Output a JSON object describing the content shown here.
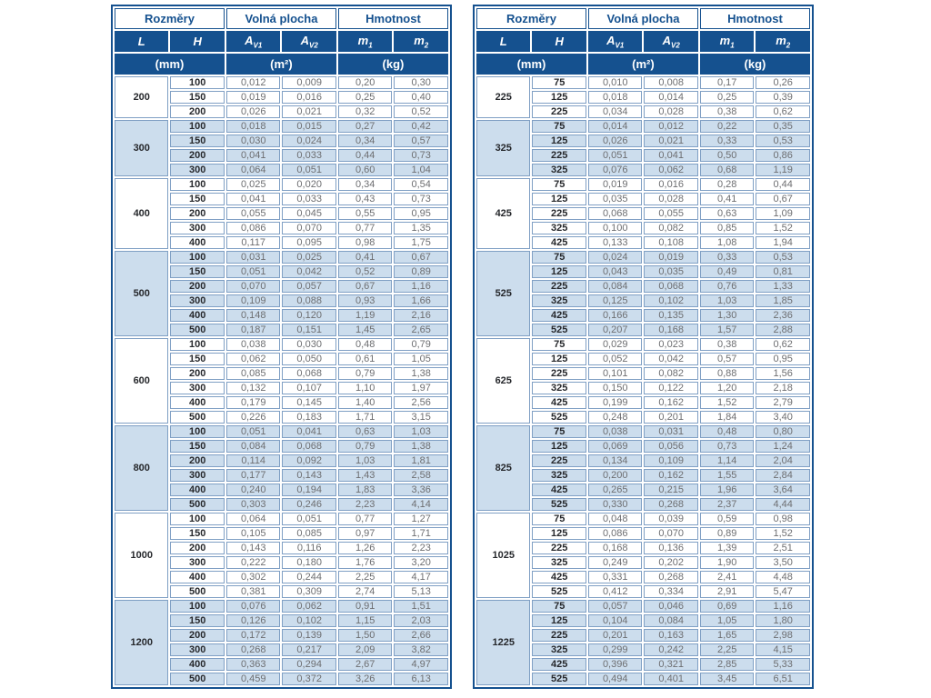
{
  "colors": {
    "header_navy": "#15518f",
    "shaded_row_blue": "#ccdded",
    "value_text_gray": "#6d6e71",
    "cell_border_blue": "#7f9fc4"
  },
  "labels": {
    "rozmery": "Rozměry",
    "volna_plocha": "Volná plocha",
    "hmotnost": "Hmotnost",
    "l": "L",
    "h": "H",
    "a_sym": "A",
    "a_sub1": "V1",
    "a_sub2": "V2",
    "m_sym": "m",
    "m_sub1": "1",
    "m_sub2": "2",
    "unit_mm": "(mm)",
    "unit_m2": "(m²)",
    "unit_kg": "(kg)"
  },
  "tables": [
    {
      "groups": [
        {
          "L": "200",
          "rows": [
            {
              "H": "100",
              "av1": "0,012",
              "av2": "0,009",
              "m1": "0,20",
              "m2": "0,30"
            },
            {
              "H": "150",
              "av1": "0,019",
              "av2": "0,016",
              "m1": "0,25",
              "m2": "0,40"
            },
            {
              "H": "200",
              "av1": "0,026",
              "av2": "0,021",
              "m1": "0,32",
              "m2": "0,52"
            }
          ]
        },
        {
          "L": "300",
          "rows": [
            {
              "H": "100",
              "av1": "0,018",
              "av2": "0,015",
              "m1": "0,27",
              "m2": "0,42"
            },
            {
              "H": "150",
              "av1": "0,030",
              "av2": "0,024",
              "m1": "0,34",
              "m2": "0,57"
            },
            {
              "H": "200",
              "av1": "0,041",
              "av2": "0,033",
              "m1": "0,44",
              "m2": "0,73"
            },
            {
              "H": "300",
              "av1": "0,064",
              "av2": "0,051",
              "m1": "0,60",
              "m2": "1,04"
            }
          ]
        },
        {
          "L": "400",
          "rows": [
            {
              "H": "100",
              "av1": "0,025",
              "av2": "0,020",
              "m1": "0,34",
              "m2": "0,54"
            },
            {
              "H": "150",
              "av1": "0,041",
              "av2": "0,033",
              "m1": "0,43",
              "m2": "0,73"
            },
            {
              "H": "200",
              "av1": "0,055",
              "av2": "0,045",
              "m1": "0,55",
              "m2": "0,95"
            },
            {
              "H": "300",
              "av1": "0,086",
              "av2": "0,070",
              "m1": "0,77",
              "m2": "1,35"
            },
            {
              "H": "400",
              "av1": "0,117",
              "av2": "0,095",
              "m1": "0,98",
              "m2": "1,75"
            }
          ]
        },
        {
          "L": "500",
          "rows": [
            {
              "H": "100",
              "av1": "0,031",
              "av2": "0,025",
              "m1": "0,41",
              "m2": "0,67"
            },
            {
              "H": "150",
              "av1": "0,051",
              "av2": "0,042",
              "m1": "0,52",
              "m2": "0,89"
            },
            {
              "H": "200",
              "av1": "0,070",
              "av2": "0,057",
              "m1": "0,67",
              "m2": "1,16"
            },
            {
              "H": "300",
              "av1": "0,109",
              "av2": "0,088",
              "m1": "0,93",
              "m2": "1,66"
            },
            {
              "H": "400",
              "av1": "0,148",
              "av2": "0,120",
              "m1": "1,19",
              "m2": "2,16"
            },
            {
              "H": "500",
              "av1": "0,187",
              "av2": "0,151",
              "m1": "1,45",
              "m2": "2,65"
            }
          ]
        },
        {
          "L": "600",
          "rows": [
            {
              "H": "100",
              "av1": "0,038",
              "av2": "0,030",
              "m1": "0,48",
              "m2": "0,79"
            },
            {
              "H": "150",
              "av1": "0,062",
              "av2": "0,050",
              "m1": "0,61",
              "m2": "1,05"
            },
            {
              "H": "200",
              "av1": "0,085",
              "av2": "0,068",
              "m1": "0,79",
              "m2": "1,38"
            },
            {
              "H": "300",
              "av1": "0,132",
              "av2": "0,107",
              "m1": "1,10",
              "m2": "1,97"
            },
            {
              "H": "400",
              "av1": "0,179",
              "av2": "0,145",
              "m1": "1,40",
              "m2": "2,56"
            },
            {
              "H": "500",
              "av1": "0,226",
              "av2": "0,183",
              "m1": "1,71",
              "m2": "3,15"
            }
          ]
        },
        {
          "L": "800",
          "rows": [
            {
              "H": "100",
              "av1": "0,051",
              "av2": "0,041",
              "m1": "0,63",
              "m2": "1,03"
            },
            {
              "H": "150",
              "av1": "0,084",
              "av2": "0,068",
              "m1": "0,79",
              "m2": "1,38"
            },
            {
              "H": "200",
              "av1": "0,114",
              "av2": "0,092",
              "m1": "1,03",
              "m2": "1,81"
            },
            {
              "H": "300",
              "av1": "0,177",
              "av2": "0,143",
              "m1": "1,43",
              "m2": "2,58"
            },
            {
              "H": "400",
              "av1": "0,240",
              "av2": "0,194",
              "m1": "1,83",
              "m2": "3,36"
            },
            {
              "H": "500",
              "av1": "0,303",
              "av2": "0,246",
              "m1": "2,23",
              "m2": "4,14"
            }
          ]
        },
        {
          "L": "1000",
          "rows": [
            {
              "H": "100",
              "av1": "0,064",
              "av2": "0,051",
              "m1": "0,77",
              "m2": "1,27"
            },
            {
              "H": "150",
              "av1": "0,105",
              "av2": "0,085",
              "m1": "0,97",
              "m2": "1,71"
            },
            {
              "H": "200",
              "av1": "0,143",
              "av2": "0,116",
              "m1": "1,26",
              "m2": "2,23"
            },
            {
              "H": "300",
              "av1": "0,222",
              "av2": "0,180",
              "m1": "1,76",
              "m2": "3,20"
            },
            {
              "H": "400",
              "av1": "0,302",
              "av2": "0,244",
              "m1": "2,25",
              "m2": "4,17"
            },
            {
              "H": "500",
              "av1": "0,381",
              "av2": "0,309",
              "m1": "2,74",
              "m2": "5,13"
            }
          ]
        },
        {
          "L": "1200",
          "rows": [
            {
              "H": "100",
              "av1": "0,076",
              "av2": "0,062",
              "m1": "0,91",
              "m2": "1,51"
            },
            {
              "H": "150",
              "av1": "0,126",
              "av2": "0,102",
              "m1": "1,15",
              "m2": "2,03"
            },
            {
              "H": "200",
              "av1": "0,172",
              "av2": "0,139",
              "m1": "1,50",
              "m2": "2,66"
            },
            {
              "H": "300",
              "av1": "0,268",
              "av2": "0,217",
              "m1": "2,09",
              "m2": "3,82"
            },
            {
              "H": "400",
              "av1": "0,363",
              "av2": "0,294",
              "m1": "2,67",
              "m2": "4,97"
            },
            {
              "H": "500",
              "av1": "0,459",
              "av2": "0,372",
              "m1": "3,26",
              "m2": "6,13"
            }
          ]
        }
      ]
    },
    {
      "groups": [
        {
          "L": "225",
          "rows": [
            {
              "H": "75",
              "av1": "0,010",
              "av2": "0,008",
              "m1": "0,17",
              "m2": "0,26"
            },
            {
              "H": "125",
              "av1": "0,018",
              "av2": "0,014",
              "m1": "0,25",
              "m2": "0,39"
            },
            {
              "H": "225",
              "av1": "0,034",
              "av2": "0,028",
              "m1": "0,38",
              "m2": "0,62"
            }
          ]
        },
        {
          "L": "325",
          "rows": [
            {
              "H": "75",
              "av1": "0,014",
              "av2": "0,012",
              "m1": "0,22",
              "m2": "0,35"
            },
            {
              "H": "125",
              "av1": "0,026",
              "av2": "0,021",
              "m1": "0,33",
              "m2": "0,53"
            },
            {
              "H": "225",
              "av1": "0,051",
              "av2": "0,041",
              "m1": "0,50",
              "m2": "0,86"
            },
            {
              "H": "325",
              "av1": "0,076",
              "av2": "0,062",
              "m1": "0,68",
              "m2": "1,19"
            }
          ]
        },
        {
          "L": "425",
          "rows": [
            {
              "H": "75",
              "av1": "0,019",
              "av2": "0,016",
              "m1": "0,28",
              "m2": "0,44"
            },
            {
              "H": "125",
              "av1": "0,035",
              "av2": "0,028",
              "m1": "0,41",
              "m2": "0,67"
            },
            {
              "H": "225",
              "av1": "0,068",
              "av2": "0,055",
              "m1": "0,63",
              "m2": "1,09"
            },
            {
              "H": "325",
              "av1": "0,100",
              "av2": "0,082",
              "m1": "0,85",
              "m2": "1,52"
            },
            {
              "H": "425",
              "av1": "0,133",
              "av2": "0,108",
              "m1": "1,08",
              "m2": "1,94"
            }
          ]
        },
        {
          "L": "525",
          "rows": [
            {
              "H": "75",
              "av1": "0,024",
              "av2": "0,019",
              "m1": "0,33",
              "m2": "0,53"
            },
            {
              "H": "125",
              "av1": "0,043",
              "av2": "0,035",
              "m1": "0,49",
              "m2": "0,81"
            },
            {
              "H": "225",
              "av1": "0,084",
              "av2": "0,068",
              "m1": "0,76",
              "m2": "1,33"
            },
            {
              "H": "325",
              "av1": "0,125",
              "av2": "0,102",
              "m1": "1,03",
              "m2": "1,85"
            },
            {
              "H": "425",
              "av1": "0,166",
              "av2": "0,135",
              "m1": "1,30",
              "m2": "2,36"
            },
            {
              "H": "525",
              "av1": "0,207",
              "av2": "0,168",
              "m1": "1,57",
              "m2": "2,88"
            }
          ]
        },
        {
          "L": "625",
          "rows": [
            {
              "H": "75",
              "av1": "0,029",
              "av2": "0,023",
              "m1": "0,38",
              "m2": "0,62"
            },
            {
              "H": "125",
              "av1": "0,052",
              "av2": "0,042",
              "m1": "0,57",
              "m2": "0,95"
            },
            {
              "H": "225",
              "av1": "0,101",
              "av2": "0,082",
              "m1": "0,88",
              "m2": "1,56"
            },
            {
              "H": "325",
              "av1": "0,150",
              "av2": "0,122",
              "m1": "1,20",
              "m2": "2,18"
            },
            {
              "H": "425",
              "av1": "0,199",
              "av2": "0,162",
              "m1": "1,52",
              "m2": "2,79"
            },
            {
              "H": "525",
              "av1": "0,248",
              "av2": "0,201",
              "m1": "1,84",
              "m2": "3,40"
            }
          ]
        },
        {
          "L": "825",
          "rows": [
            {
              "H": "75",
              "av1": "0,038",
              "av2": "0,031",
              "m1": "0,48",
              "m2": "0,80"
            },
            {
              "H": "125",
              "av1": "0,069",
              "av2": "0,056",
              "m1": "0,73",
              "m2": "1,24"
            },
            {
              "H": "225",
              "av1": "0,134",
              "av2": "0,109",
              "m1": "1,14",
              "m2": "2,04"
            },
            {
              "H": "325",
              "av1": "0,200",
              "av2": "0,162",
              "m1": "1,55",
              "m2": "2,84"
            },
            {
              "H": "425",
              "av1": "0,265",
              "av2": "0,215",
              "m1": "1,96",
              "m2": "3,64"
            },
            {
              "H": "525",
              "av1": "0,330",
              "av2": "0,268",
              "m1": "2,37",
              "m2": "4,44"
            }
          ]
        },
        {
          "L": "1025",
          "rows": [
            {
              "H": "75",
              "av1": "0,048",
              "av2": "0,039",
              "m1": "0,59",
              "m2": "0,98"
            },
            {
              "H": "125",
              "av1": "0,086",
              "av2": "0,070",
              "m1": "0,89",
              "m2": "1,52"
            },
            {
              "H": "225",
              "av1": "0,168",
              "av2": "0,136",
              "m1": "1,39",
              "m2": "2,51"
            },
            {
              "H": "325",
              "av1": "0,249",
              "av2": "0,202",
              "m1": "1,90",
              "m2": "3,50"
            },
            {
              "H": "425",
              "av1": "0,331",
              "av2": "0,268",
              "m1": "2,41",
              "m2": "4,48"
            },
            {
              "H": "525",
              "av1": "0,412",
              "av2": "0,334",
              "m1": "2,91",
              "m2": "5,47"
            }
          ]
        },
        {
          "L": "1225",
          "rows": [
            {
              "H": "75",
              "av1": "0,057",
              "av2": "0,046",
              "m1": "0,69",
              "m2": "1,16"
            },
            {
              "H": "125",
              "av1": "0,104",
              "av2": "0,084",
              "m1": "1,05",
              "m2": "1,80"
            },
            {
              "H": "225",
              "av1": "0,201",
              "av2": "0,163",
              "m1": "1,65",
              "m2": "2,98"
            },
            {
              "H": "325",
              "av1": "0,299",
              "av2": "0,242",
              "m1": "2,25",
              "m2": "4,15"
            },
            {
              "H": "425",
              "av1": "0,396",
              "av2": "0,321",
              "m1": "2,85",
              "m2": "5,33"
            },
            {
              "H": "525",
              "av1": "0,494",
              "av2": "0,401",
              "m1": "3,45",
              "m2": "6,51"
            }
          ]
        }
      ]
    }
  ]
}
